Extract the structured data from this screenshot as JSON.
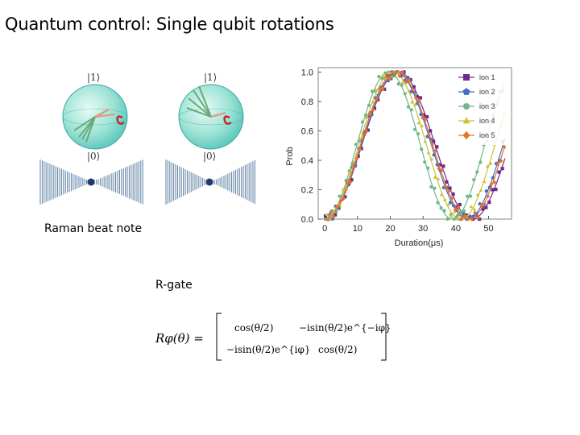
{
  "slide": {
    "title": "Quantum control: Single qubit rotations",
    "raman_label": "Raman beat note",
    "rgate_label": "R-gate"
  },
  "bloch": {
    "ket1": "|1⟩",
    "ket0": "|0⟩"
  },
  "formula": {
    "lhs": "Rφ(θ) =",
    "m11": "cos(θ/2)",
    "m12": "−isin(θ/2)e^{−iφ}",
    "m21": "−isin(θ/2)e^{iφ}",
    "m22": "cos(θ/2)"
  },
  "chart_data": {
    "type": "scatter",
    "xlabel": "Duration(μs)",
    "ylabel": "Prob",
    "xlim": [
      -2,
      57
    ],
    "ylim": [
      0,
      1.03
    ],
    "xticks": [
      0,
      10,
      20,
      30,
      40,
      50
    ],
    "yticks": [
      0.0,
      0.2,
      0.4,
      0.6,
      0.8,
      1.0
    ],
    "ytick_labels": [
      "0.0",
      "0.2",
      "0.4",
      "0.6",
      "0.8",
      "1.0"
    ],
    "legend_position": "top-right",
    "series": [
      {
        "name": "ion 1",
        "color": "#6a2d8f",
        "marker": "square",
        "period": 45.0,
        "max_time": 55
      },
      {
        "name": "ion 2",
        "color": "#3e6fc4",
        "marker": "pentagon",
        "period": 43.5,
        "max_time": 55
      },
      {
        "name": "ion 3",
        "color": "#6fb88a",
        "marker": "circle",
        "period": 39.0,
        "max_time": 55
      },
      {
        "name": "ion 4",
        "color": "#cbc13a",
        "marker": "triangle",
        "period": 41.5,
        "max_time": 55
      },
      {
        "name": "ion 5",
        "color": "#e8722c",
        "marker": "diamond",
        "period": 44.0,
        "max_time": 55
      }
    ],
    "curve": "P(t) = (1 - cos(2*pi*t/period)) / 2"
  }
}
